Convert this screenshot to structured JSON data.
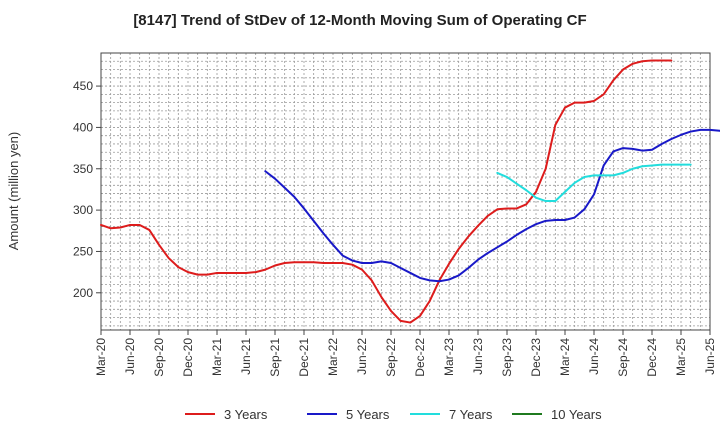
{
  "chart_data": {
    "type": "line",
    "title": "[8147]  Trend of StDev of 12-Month Moving Sum of Operating CF",
    "ylabel": "Amount (million yen)",
    "xlabel": "",
    "ylim": [
      155,
      490
    ],
    "yticks": [
      200,
      250,
      300,
      350,
      400,
      450
    ],
    "x_tick_labels": [
      "Mar-20",
      "Jun-20",
      "Sep-20",
      "Dec-20",
      "Mar-21",
      "Jun-21",
      "Sep-21",
      "Dec-21",
      "Mar-22",
      "Jun-22",
      "Sep-22",
      "Dec-22",
      "Mar-23",
      "Jun-23",
      "Sep-23",
      "Dec-23",
      "Mar-24",
      "Jun-24",
      "Sep-24",
      "Dec-24",
      "Mar-25",
      "Jun-25"
    ],
    "x_range": [
      "2020-03",
      "2025-06"
    ],
    "grid": true,
    "legend_position": "bottom",
    "series": [
      {
        "name": "3 Years",
        "color": "#dd1c1c",
        "start": "2020-03",
        "values": [
          282,
          278,
          279,
          282,
          282,
          276,
          258,
          242,
          231,
          225,
          222,
          222,
          224,
          224,
          224,
          224,
          225,
          228,
          233,
          236,
          237,
          237,
          237,
          236,
          236,
          236,
          234,
          228,
          215,
          195,
          178,
          166,
          164,
          172,
          190,
          215,
          235,
          253,
          268,
          281,
          293,
          301,
          302,
          302,
          307,
          322,
          350,
          403,
          424,
          430,
          430,
          432,
          440,
          457,
          470,
          477,
          480,
          481,
          481,
          481
        ]
      },
      {
        "name": "5 Years",
        "color": "#1919c8",
        "start": "2021-08",
        "values": [
          347,
          338,
          327,
          316,
          302,
          287,
          272,
          258,
          245,
          239,
          236,
          236,
          238,
          236,
          230,
          224,
          218,
          215,
          214,
          216,
          221,
          230,
          240,
          248,
          255,
          262,
          270,
          277,
          283,
          287,
          288,
          288,
          291,
          301,
          319,
          354,
          371,
          375,
          374,
          372,
          373,
          380,
          386,
          391,
          395,
          397,
          397,
          396,
          393
        ]
      },
      {
        "name": "7 Years",
        "color": "#22dddd",
        "start": "2023-08",
        "values": [
          345,
          340,
          332,
          324,
          315,
          311,
          311,
          322,
          333,
          340,
          342,
          342,
          342,
          345,
          350,
          353,
          354,
          355,
          355,
          355,
          355
        ]
      },
      {
        "name": "10 Years",
        "color": "#1f7a1f",
        "start": "2025-03",
        "values": []
      }
    ]
  }
}
